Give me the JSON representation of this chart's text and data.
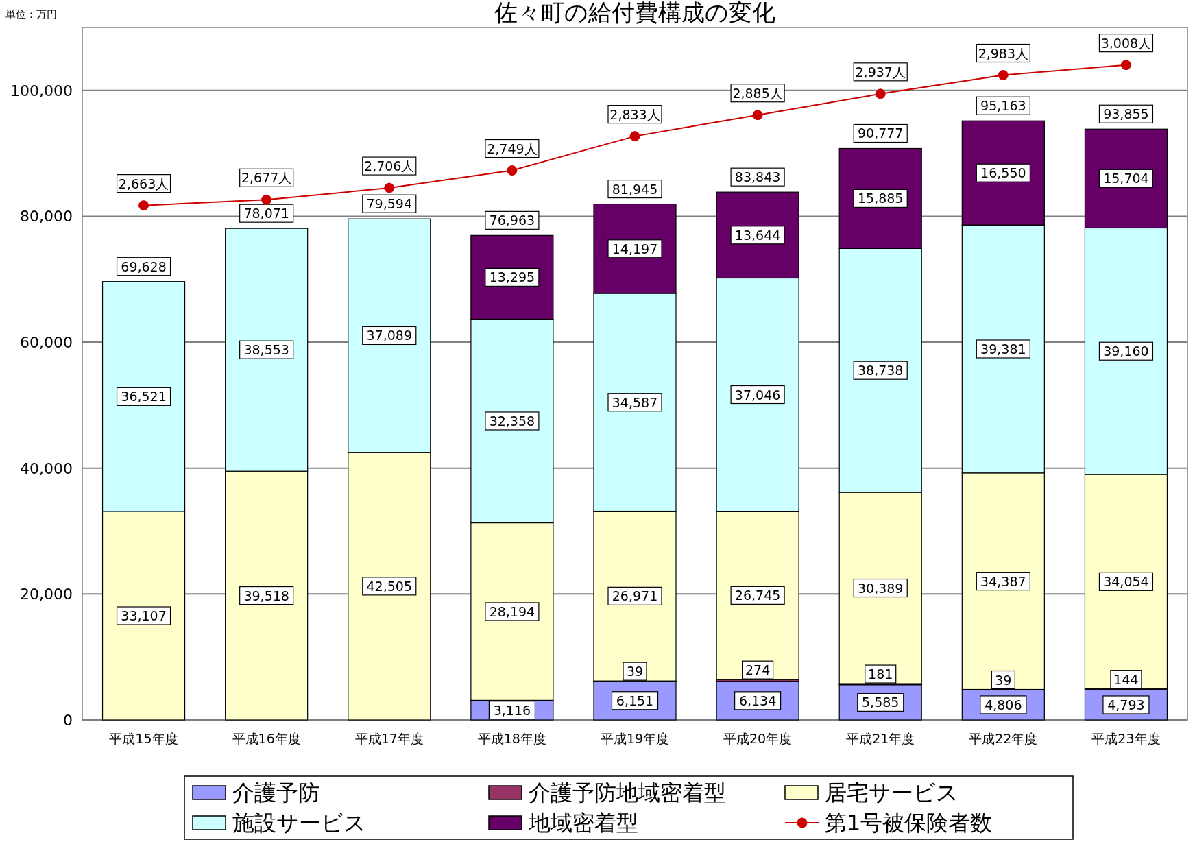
{
  "chart_data": {
    "type": "bar",
    "title": "佐々町の給付費構成の変化",
    "annotations": [
      "単位：万円"
    ],
    "categories": [
      "平成15年度",
      "平成16年度",
      "平成17年度",
      "平成18年度",
      "平成19年度",
      "平成20年度",
      "平成21年度",
      "平成22年度",
      "平成23年度"
    ],
    "stacked": true,
    "ylim": [
      0,
      110000
    ],
    "yticks": [
      0,
      {
        "value": 20000,
        "label": "20,000"
      },
      {
        "value": 40000,
        "label": "40,000"
      },
      {
        "value": 60000,
        "label": "60,000"
      },
      {
        "value": 80000,
        "label": "80,000"
      },
      {
        "value": 100000,
        "label": "100,000"
      }
    ],
    "y2lim": [
      1400,
      3100
    ],
    "grid": "y",
    "legend": "bottom",
    "series": [
      {
        "name": "介護予防",
        "color": "#9999ff",
        "values": [
          null,
          null,
          null,
          3116,
          6151,
          6134,
          5585,
          4806,
          4793
        ],
        "value_labels": [
          null,
          null,
          null,
          "3,116",
          "6,151",
          "6,134",
          "5,585",
          "4,806",
          "4,793"
        ]
      },
      {
        "name": "介護予防地域密着型",
        "color": "#993366",
        "values": [
          null,
          null,
          null,
          null,
          39,
          274,
          181,
          39,
          144
        ],
        "value_labels": [
          null,
          null,
          null,
          null,
          "39",
          "274",
          "181",
          "39",
          "144"
        ]
      },
      {
        "name": "居宅サービス",
        "color": "#ffffcc",
        "values": [
          33107,
          39518,
          42505,
          28194,
          26971,
          26745,
          30389,
          34387,
          34054
        ],
        "value_labels": [
          "33,107",
          "39,518",
          "42,505",
          "28,194",
          "26,971",
          "26,745",
          "30,389",
          "34,387",
          "34,054"
        ]
      },
      {
        "name": "施設サービス",
        "color": "#ccffff",
        "values": [
          36521,
          38553,
          37089,
          32358,
          34587,
          37046,
          38738,
          39381,
          39160
        ],
        "value_labels": [
          "36,521",
          "38,553",
          "37,089",
          "32,358",
          "34,587",
          "37,046",
          "38,738",
          "39,381",
          "39,160"
        ]
      },
      {
        "name": "地域密着型",
        "color": "#660066",
        "values": [
          null,
          null,
          null,
          13295,
          14197,
          13644,
          15885,
          16550,
          15704
        ],
        "value_labels": [
          null,
          null,
          null,
          "13,295",
          "14,197",
          "13,644",
          "15,885",
          "16,550",
          "15,704"
        ]
      },
      {
        "name": "第1号被保険者数",
        "type": "line",
        "axis": "y2",
        "marker": "circle",
        "color": "#cc0000",
        "values": [
          2663,
          2677,
          2706,
          2749,
          2833,
          2885,
          2937,
          2983,
          3008
        ],
        "value_labels": [
          "2,663人",
          "2,677人",
          "2,706人",
          "2,749人",
          "2,833人",
          "2,885人",
          "2,937人",
          "2,983人",
          "3,008人"
        ]
      }
    ],
    "totals": [
      "69,628",
      "78,071",
      "79,594",
      "76,963",
      "81,945",
      "83,843",
      "90,777",
      "95,163",
      "93,855"
    ]
  }
}
